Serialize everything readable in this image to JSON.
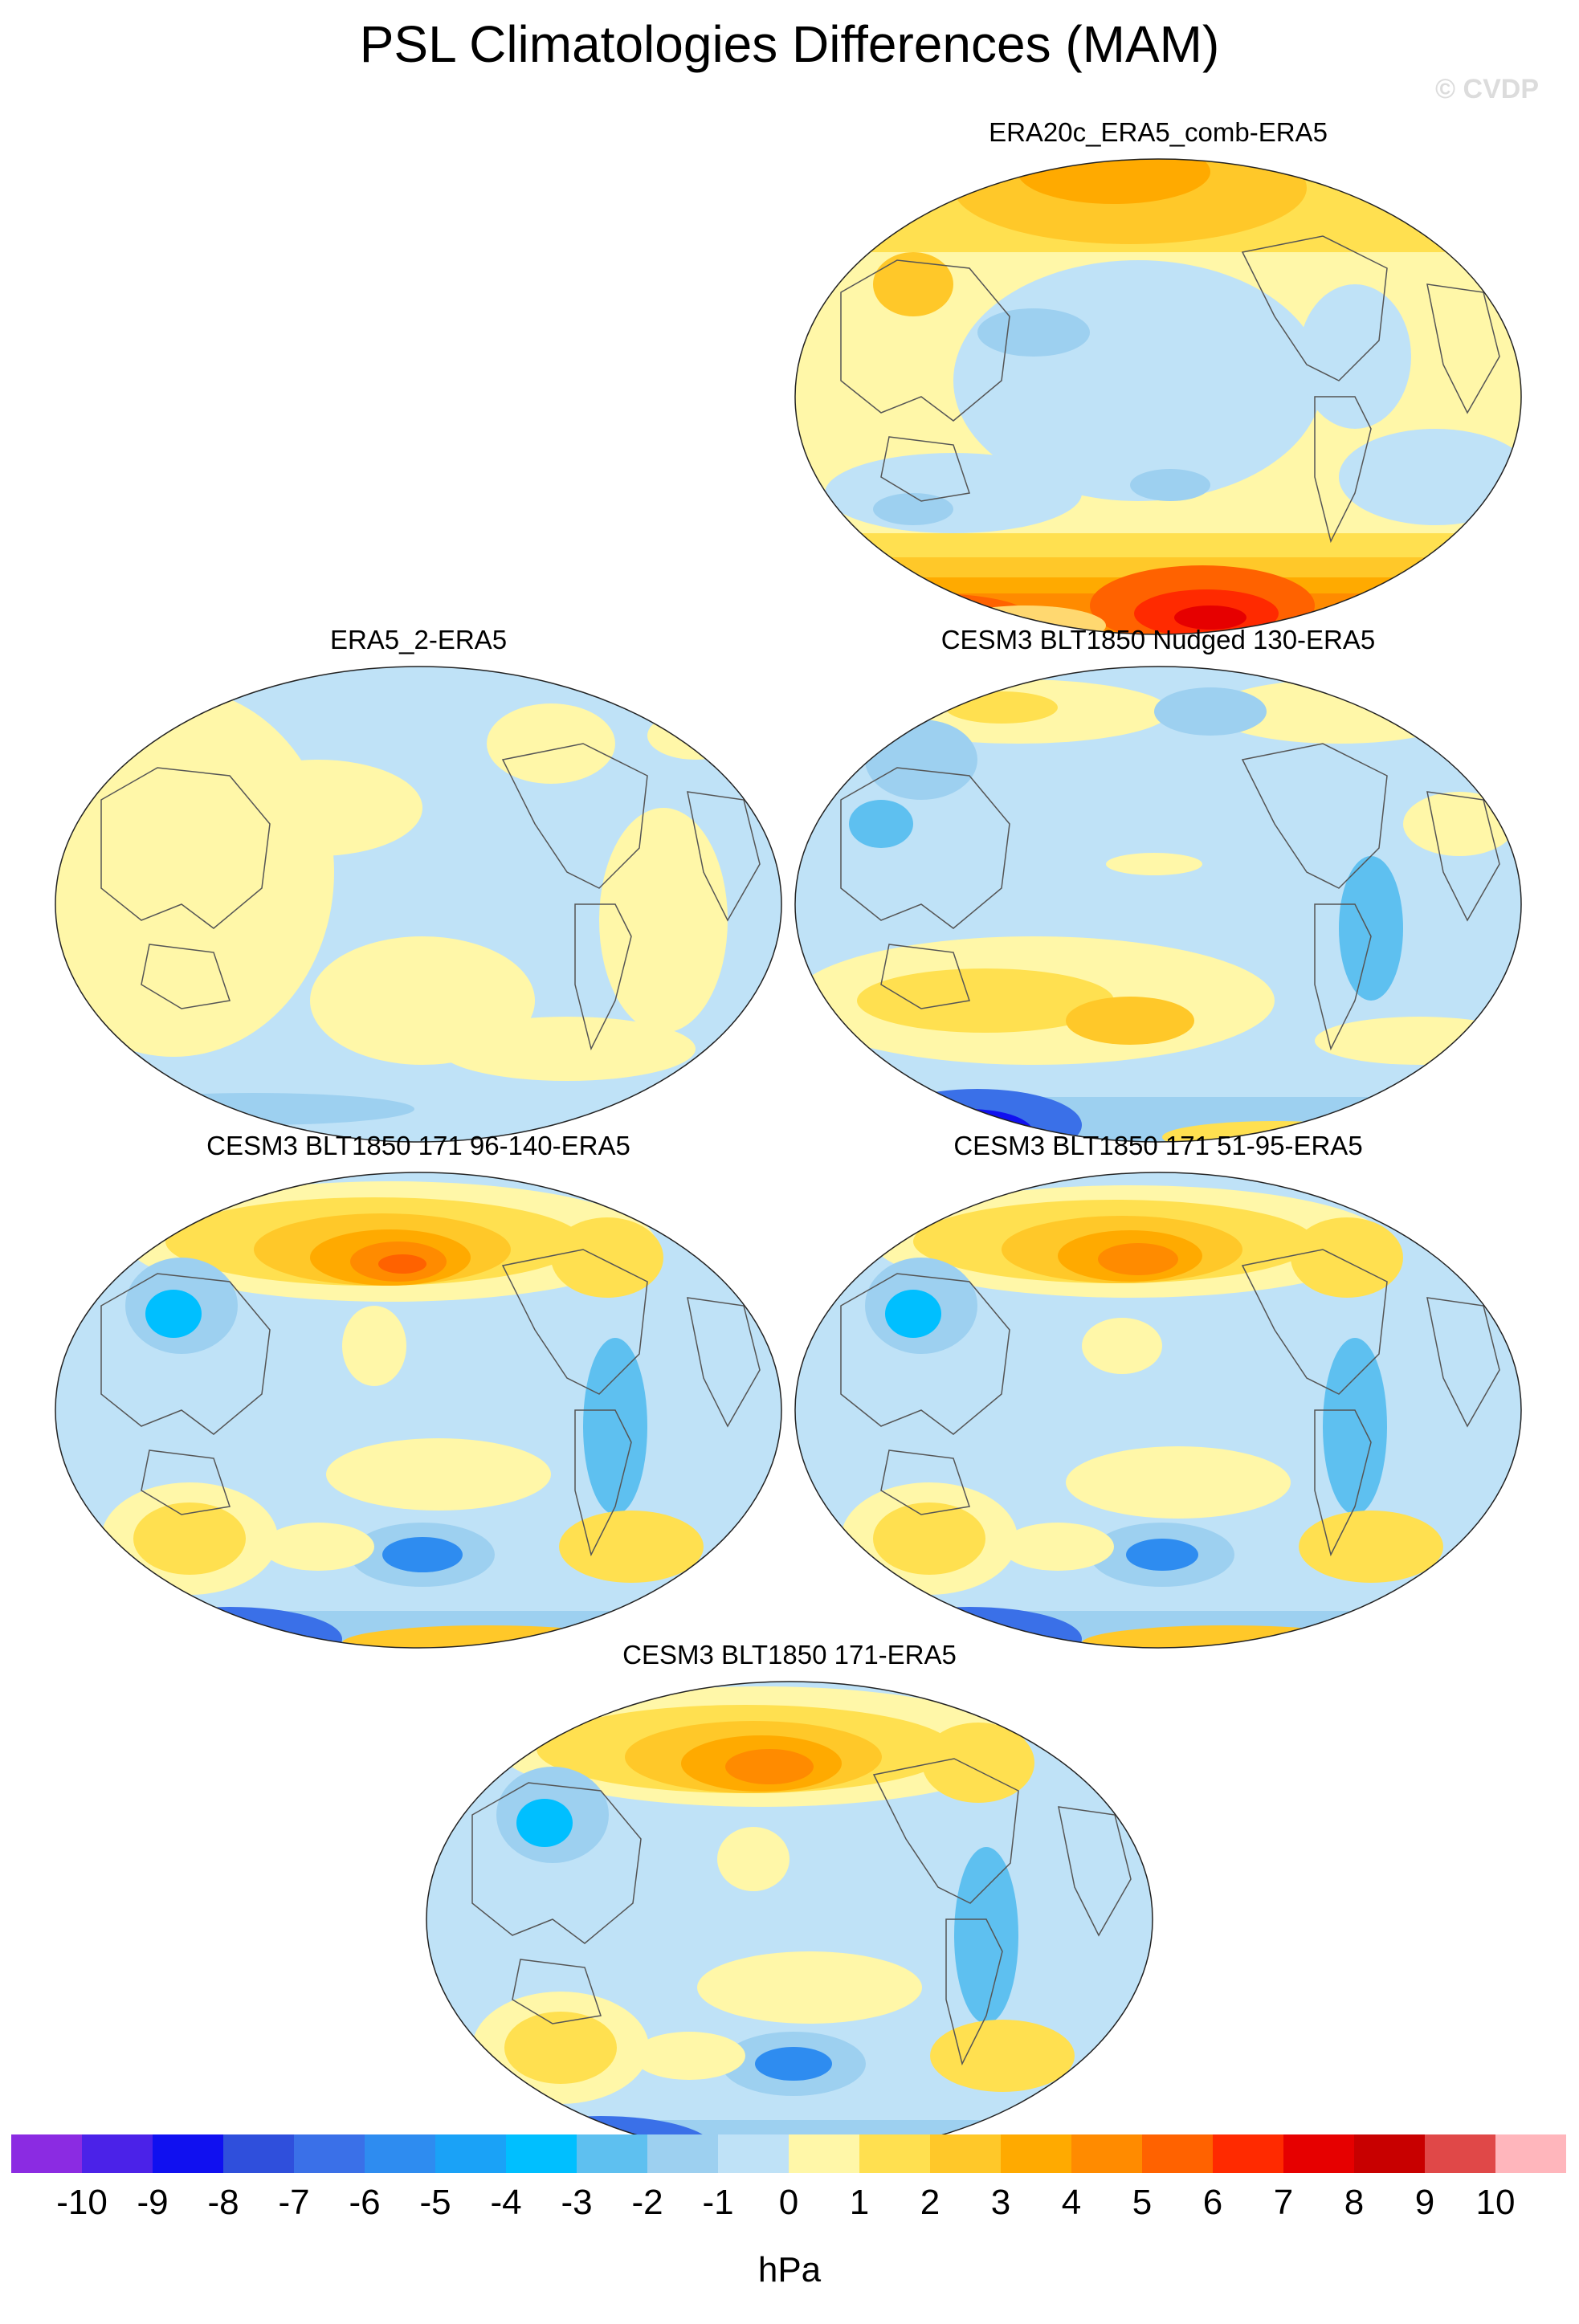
{
  "title": "PSL Climatologies Differences (MAM)",
  "watermark": "© CVDP",
  "panels": [
    {
      "title": "ERA20c_ERA5_comb-ERA5"
    },
    {
      "title": "ERA5_2-ERA5"
    },
    {
      "title": "CESM3 BLT1850 Nudged 130-ERA5"
    },
    {
      "title": "CESM3 BLT1850 171 96-140-ERA5"
    },
    {
      "title": "CESM3 BLT1850 171 51-95-ERA5"
    },
    {
      "title": "CESM3 BLT1850 171-ERA5"
    }
  ],
  "colorbar": {
    "units": "hPa",
    "labels": [
      "-10",
      "-9",
      "-8",
      "-7",
      "-6",
      "-5",
      "-4",
      "-3",
      "-2",
      "-1",
      "0",
      "1",
      "2",
      "3",
      "4",
      "5",
      "6",
      "7",
      "8",
      "9",
      "10"
    ],
    "colors": [
      "#8b2be2",
      "#4b22e8",
      "#1010f0",
      "#2f4fdc",
      "#3a70e8",
      "#2e8cf0",
      "#1aa2f7",
      "#00bfff",
      "#5ec0f0",
      "#9dd0f0",
      "#bfe2f7",
      "#fff7a8",
      "#ffe050",
      "#ffc829",
      "#ffaa00",
      "#ff8b00",
      "#ff6200",
      "#ff2a00",
      "#e60000",
      "#c80000",
      "#e04848",
      "#ffb6bc"
    ]
  },
  "legend_ranges": {
    "neg_light": "-1 to 0",
    "pos_light": "0 to 1"
  }
}
